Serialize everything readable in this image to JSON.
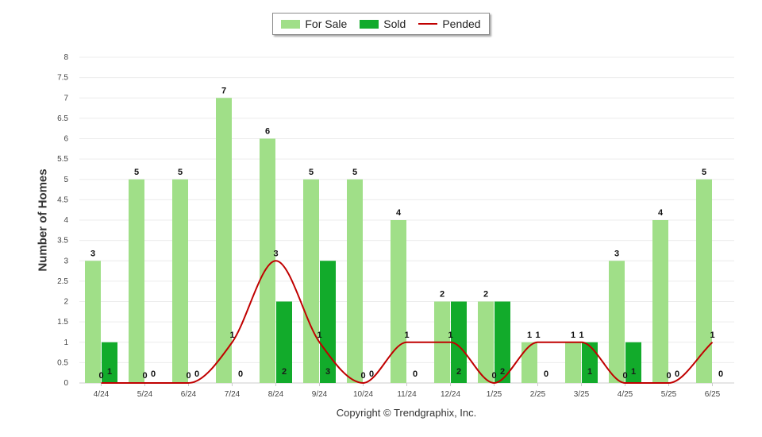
{
  "chart_data": {
    "type": "bar",
    "categories": [
      "4/24",
      "5/24",
      "6/24",
      "7/24",
      "8/24",
      "9/24",
      "10/24",
      "11/24",
      "12/24",
      "1/25",
      "2/25",
      "3/25",
      "4/25",
      "5/25",
      "6/25"
    ],
    "series": [
      {
        "name": "For Sale",
        "type": "bar",
        "color": "#a0df88",
        "values": [
          3,
          5,
          5,
          7,
          6,
          5,
          5,
          4,
          2,
          2,
          1,
          1,
          3,
          4,
          5
        ]
      },
      {
        "name": "Sold",
        "type": "bar",
        "color": "#12ab2b",
        "values": [
          1,
          0,
          0,
          0,
          2,
          3,
          0,
          0,
          2,
          2,
          0,
          1,
          1,
          0,
          0
        ]
      },
      {
        "name": "Pended",
        "type": "line",
        "color": "#c00000",
        "values": [
          0,
          0,
          0,
          1,
          3,
          1,
          0,
          1,
          1,
          0,
          1,
          1,
          0,
          0,
          1
        ]
      }
    ],
    "ylabel": "Number of Homes",
    "ylim": [
      0,
      8
    ],
    "yticks": [
      "0",
      "0.5",
      "1",
      "1.5",
      "2",
      "2.5",
      "3",
      "3.5",
      "4",
      "4.5",
      "5",
      "5.5",
      "6",
      "6.5",
      "7",
      "7.5",
      "8"
    ],
    "grid": true,
    "legend_position": "top-center",
    "data_labels": true
  },
  "footer": {
    "copyright": "Copyright © Trendgraphix, Inc."
  }
}
